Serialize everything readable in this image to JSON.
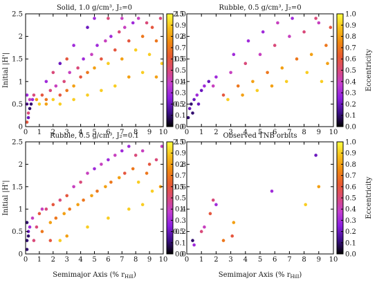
{
  "colorbar": {
    "label": "Eccentricity",
    "ticks": [
      "0.0",
      "0.1",
      "0.2",
      "0.3",
      "0.4",
      "0.5",
      "0.6",
      "0.7",
      "0.8",
      "0.9",
      "1.0"
    ],
    "range": [
      0,
      1
    ],
    "colormap": [
      "#000000",
      "#3d0f8a",
      "#8a1ee0",
      "#c23ed0",
      "#d94a7a",
      "#e85a30",
      "#f08a10",
      "#f7c01a",
      "#ffff40"
    ]
  },
  "axes": {
    "ylabel": "Initial |H'|",
    "xlabel_main": "Semimajor Axis (% r",
    "xlabel_sub": "Hill",
    "xlabel_end": ")",
    "xlim": [
      0,
      10
    ],
    "ylim": [
      0,
      2.5
    ],
    "xticks": [
      "0",
      "1",
      "2",
      "3",
      "4",
      "5",
      "6",
      "7",
      "8",
      "9",
      "10"
    ],
    "yticks": [
      "0",
      "0.5",
      "1",
      "1.5",
      "2",
      "2.5"
    ]
  },
  "chart_data": [
    {
      "type": "scatter",
      "title": "Solid, 1.0 g/cm³, J₂=0",
      "xlim": [
        0,
        10
      ],
      "ylim": [
        0,
        2.5
      ],
      "x_param": "semimajor axis (% r_Hill)",
      "y_param": "initial |H'|",
      "color_param": "eccentricity",
      "points": [
        [
          0.1,
          0.1,
          0.6
        ],
        [
          0.2,
          0.3,
          0.5
        ],
        [
          0.3,
          0.4,
          0.1
        ],
        [
          0.1,
          0.5,
          0.2
        ],
        [
          0.4,
          0.5,
          0.1
        ],
        [
          0.5,
          0.6,
          0.3
        ],
        [
          0.2,
          0.2,
          0.2
        ],
        [
          0.3,
          0.6,
          0.4
        ],
        [
          0.1,
          0.7,
          0.3
        ],
        [
          0.6,
          0.7,
          0.5
        ],
        [
          0.8,
          0.6,
          0.8
        ],
        [
          1.0,
          0.5,
          0.9
        ],
        [
          1.2,
          0.7,
          0.6
        ],
        [
          1.5,
          0.6,
          0.7
        ],
        [
          1.8,
          0.8,
          0.5
        ],
        [
          2.0,
          0.6,
          0.9
        ],
        [
          2.2,
          0.9,
          0.4
        ],
        [
          2.5,
          0.7,
          0.6
        ],
        [
          2.8,
          1.0,
          0.5
        ],
        [
          3.0,
          0.8,
          0.7
        ],
        [
          3.2,
          1.2,
          0.4
        ],
        [
          3.5,
          0.9,
          0.8
        ],
        [
          3.8,
          1.3,
          0.5
        ],
        [
          4.0,
          1.1,
          0.6
        ],
        [
          4.2,
          1.5,
          0.3
        ],
        [
          4.5,
          1.2,
          0.7
        ],
        [
          4.8,
          1.6,
          0.4
        ],
        [
          5.0,
          1.3,
          0.8
        ],
        [
          5.2,
          1.8,
          0.3
        ],
        [
          5.5,
          1.5,
          0.6
        ],
        [
          5.8,
          1.9,
          0.4
        ],
        [
          6.0,
          1.4,
          0.9
        ],
        [
          6.2,
          2.0,
          0.3
        ],
        [
          6.5,
          1.7,
          0.6
        ],
        [
          6.8,
          2.1,
          0.5
        ],
        [
          7.0,
          1.5,
          0.8
        ],
        [
          7.2,
          2.2,
          0.4
        ],
        [
          7.5,
          1.9,
          0.6
        ],
        [
          7.8,
          2.3,
          0.3
        ],
        [
          8.0,
          1.7,
          0.9
        ],
        [
          8.2,
          2.4,
          0.4
        ],
        [
          8.5,
          2.0,
          0.7
        ],
        [
          8.8,
          2.3,
          0.5
        ],
        [
          9.0,
          1.6,
          0.9
        ],
        [
          9.2,
          2.2,
          0.6
        ],
        [
          9.5,
          1.9,
          0.7
        ],
        [
          9.8,
          2.4,
          0.5
        ],
        [
          9.9,
          1.4,
          0.9
        ],
        [
          1.5,
          1.0,
          0.3
        ],
        [
          2.5,
          1.4,
          0.2
        ],
        [
          3.5,
          1.8,
          0.3
        ],
        [
          4.5,
          2.2,
          0.2
        ],
        [
          5.0,
          2.4,
          0.3
        ],
        [
          3.0,
          1.5,
          0.6
        ],
        [
          2.0,
          1.2,
          0.5
        ],
        [
          6.0,
          2.4,
          0.5
        ],
        [
          7.0,
          2.4,
          0.4
        ],
        [
          8.5,
          1.2,
          0.9
        ],
        [
          9.5,
          1.1,
          0.8
        ],
        [
          7.5,
          1.1,
          0.8
        ],
        [
          6.5,
          0.9,
          0.9
        ],
        [
          5.5,
          0.8,
          0.9
        ],
        [
          4.5,
          0.7,
          0.9
        ],
        [
          3.5,
          0.6,
          0.9
        ],
        [
          2.5,
          0.5,
          0.9
        ],
        [
          1.5,
          0.5,
          0.8
        ]
      ]
    },
    {
      "type": "scatter",
      "title": "Rubble, 0.5 g/cm³, J₂=0",
      "xlim": [
        0,
        10
      ],
      "ylim": [
        0,
        2.5
      ],
      "x_param": "semimajor axis (% r_Hill)",
      "y_param": "initial |H'|",
      "color_param": "eccentricity",
      "points": [
        [
          0.1,
          0.2,
          0.1
        ],
        [
          0.2,
          0.4,
          0.2
        ],
        [
          0.3,
          0.5,
          0.1
        ],
        [
          0.5,
          0.6,
          0.2
        ],
        [
          0.7,
          0.7,
          0.3
        ],
        [
          1.0,
          0.8,
          0.2
        ],
        [
          0.4,
          0.3,
          0.1
        ],
        [
          0.8,
          0.5,
          0.2
        ],
        [
          1.2,
          0.9,
          0.3
        ],
        [
          1.5,
          1.0,
          0.2
        ],
        [
          1.8,
          0.9,
          0.4
        ],
        [
          2.0,
          1.1,
          0.3
        ],
        [
          2.5,
          0.7,
          0.6
        ],
        [
          3.0,
          1.2,
          0.4
        ],
        [
          3.5,
          0.9,
          0.7
        ],
        [
          4.0,
          1.4,
          0.5
        ],
        [
          4.5,
          1.0,
          0.8
        ],
        [
          5.0,
          1.6,
          0.4
        ],
        [
          5.5,
          1.2,
          0.7
        ],
        [
          6.0,
          1.8,
          0.5
        ],
        [
          6.5,
          1.3,
          0.8
        ],
        [
          7.0,
          2.0,
          0.4
        ],
        [
          7.5,
          1.5,
          0.7
        ],
        [
          8.0,
          2.1,
          0.5
        ],
        [
          8.5,
          1.6,
          0.8
        ],
        [
          9.0,
          2.3,
          0.4
        ],
        [
          9.5,
          1.8,
          0.7
        ],
        [
          9.8,
          2.2,
          0.6
        ],
        [
          3.2,
          1.6,
          0.3
        ],
        [
          4.2,
          1.9,
          0.3
        ],
        [
          5.2,
          2.1,
          0.3
        ],
        [
          6.2,
          2.3,
          0.4
        ],
        [
          7.2,
          2.4,
          0.3
        ],
        [
          8.2,
          1.2,
          0.9
        ],
        [
          9.2,
          1.0,
          0.9
        ],
        [
          6.8,
          1.0,
          0.9
        ],
        [
          5.8,
          0.9,
          0.8
        ],
        [
          4.8,
          0.8,
          0.9
        ],
        [
          3.8,
          0.7,
          0.8
        ],
        [
          2.8,
          0.6,
          0.9
        ],
        [
          9.6,
          1.4,
          0.8
        ],
        [
          8.8,
          2.4,
          0.5
        ]
      ]
    },
    {
      "type": "scatter",
      "title": "Rubble, 0.5 g/cm³, J₂=0.1",
      "xlim": [
        0,
        10
      ],
      "ylim": [
        0,
        2.5
      ],
      "x_param": "semimajor axis (% r_Hill)",
      "y_param": "initial |H'|",
      "color_param": "eccentricity",
      "points": [
        [
          0.1,
          0.1,
          0.1
        ],
        [
          0.1,
          0.3,
          0.1
        ],
        [
          0.2,
          0.5,
          0.2
        ],
        [
          0.1,
          0.7,
          0.1
        ],
        [
          0.3,
          0.6,
          0.3
        ],
        [
          0.2,
          0.4,
          0.1
        ],
        [
          0.5,
          0.8,
          0.4
        ],
        [
          0.8,
          0.6,
          0.5
        ],
        [
          1.0,
          0.9,
          0.6
        ],
        [
          1.2,
          0.5,
          0.7
        ],
        [
          1.5,
          1.0,
          0.5
        ],
        [
          1.8,
          0.7,
          0.8
        ],
        [
          2.0,
          1.1,
          0.6
        ],
        [
          2.2,
          0.8,
          0.7
        ],
        [
          2.5,
          1.2,
          0.5
        ],
        [
          2.8,
          0.9,
          0.8
        ],
        [
          3.0,
          1.3,
          0.6
        ],
        [
          3.2,
          1.0,
          0.7
        ],
        [
          3.5,
          1.5,
          0.4
        ],
        [
          3.8,
          1.1,
          0.8
        ],
        [
          4.0,
          1.6,
          0.5
        ],
        [
          4.2,
          1.2,
          0.7
        ],
        [
          4.5,
          1.8,
          0.4
        ],
        [
          4.8,
          1.3,
          0.8
        ],
        [
          5.0,
          1.9,
          0.3
        ],
        [
          5.2,
          1.4,
          0.7
        ],
        [
          5.5,
          2.0,
          0.4
        ],
        [
          5.8,
          1.5,
          0.8
        ],
        [
          6.0,
          2.1,
          0.3
        ],
        [
          6.2,
          1.6,
          0.7
        ],
        [
          6.5,
          2.2,
          0.4
        ],
        [
          6.8,
          1.7,
          0.8
        ],
        [
          7.0,
          2.3,
          0.3
        ],
        [
          7.2,
          1.8,
          0.6
        ],
        [
          7.5,
          2.4,
          0.3
        ],
        [
          7.8,
          1.9,
          0.7
        ],
        [
          8.0,
          2.2,
          0.5
        ],
        [
          8.2,
          1.6,
          0.9
        ],
        [
          8.5,
          2.3,
          0.4
        ],
        [
          8.8,
          1.8,
          0.7
        ],
        [
          9.0,
          2.0,
          0.6
        ],
        [
          9.2,
          1.4,
          0.9
        ],
        [
          9.5,
          2.1,
          0.5
        ],
        [
          9.8,
          1.5,
          0.8
        ],
        [
          9.9,
          2.4,
          0.4
        ],
        [
          2.5,
          0.3,
          0.9
        ],
        [
          3.0,
          0.4,
          0.8
        ],
        [
          4.5,
          0.6,
          0.9
        ],
        [
          6.0,
          0.8,
          0.9
        ],
        [
          7.5,
          1.0,
          0.9
        ],
        [
          8.5,
          1.1,
          0.9
        ],
        [
          1.8,
          0.3,
          0.6
        ],
        [
          1.2,
          1.0,
          0.4
        ],
        [
          0.6,
          0.3,
          0.5
        ]
      ]
    },
    {
      "type": "scatter",
      "title": "Observed TNB orbits",
      "xlim": [
        0,
        10
      ],
      "ylim": [
        0,
        2.5
      ],
      "x_param": "semimajor axis (% r_Hill)",
      "y_param": "initial |H'|",
      "color_param": "eccentricity",
      "points": [
        [
          0.4,
          0.3,
          0.1
        ],
        [
          0.5,
          0.2,
          0.3
        ],
        [
          1.0,
          0.5,
          0.5
        ],
        [
          1.2,
          0.6,
          0.4
        ],
        [
          1.6,
          0.9,
          0.6
        ],
        [
          1.8,
          1.2,
          0.5
        ],
        [
          2.0,
          1.1,
          0.3
        ],
        [
          2.5,
          0.3,
          0.7
        ],
        [
          3.1,
          0.4,
          0.6
        ],
        [
          3.2,
          0.7,
          0.8
        ],
        [
          5.8,
          1.4,
          0.3
        ],
        [
          8.1,
          1.1,
          0.9
        ],
        [
          8.8,
          2.2,
          0.2
        ],
        [
          9.0,
          1.5,
          0.8
        ]
      ]
    }
  ]
}
